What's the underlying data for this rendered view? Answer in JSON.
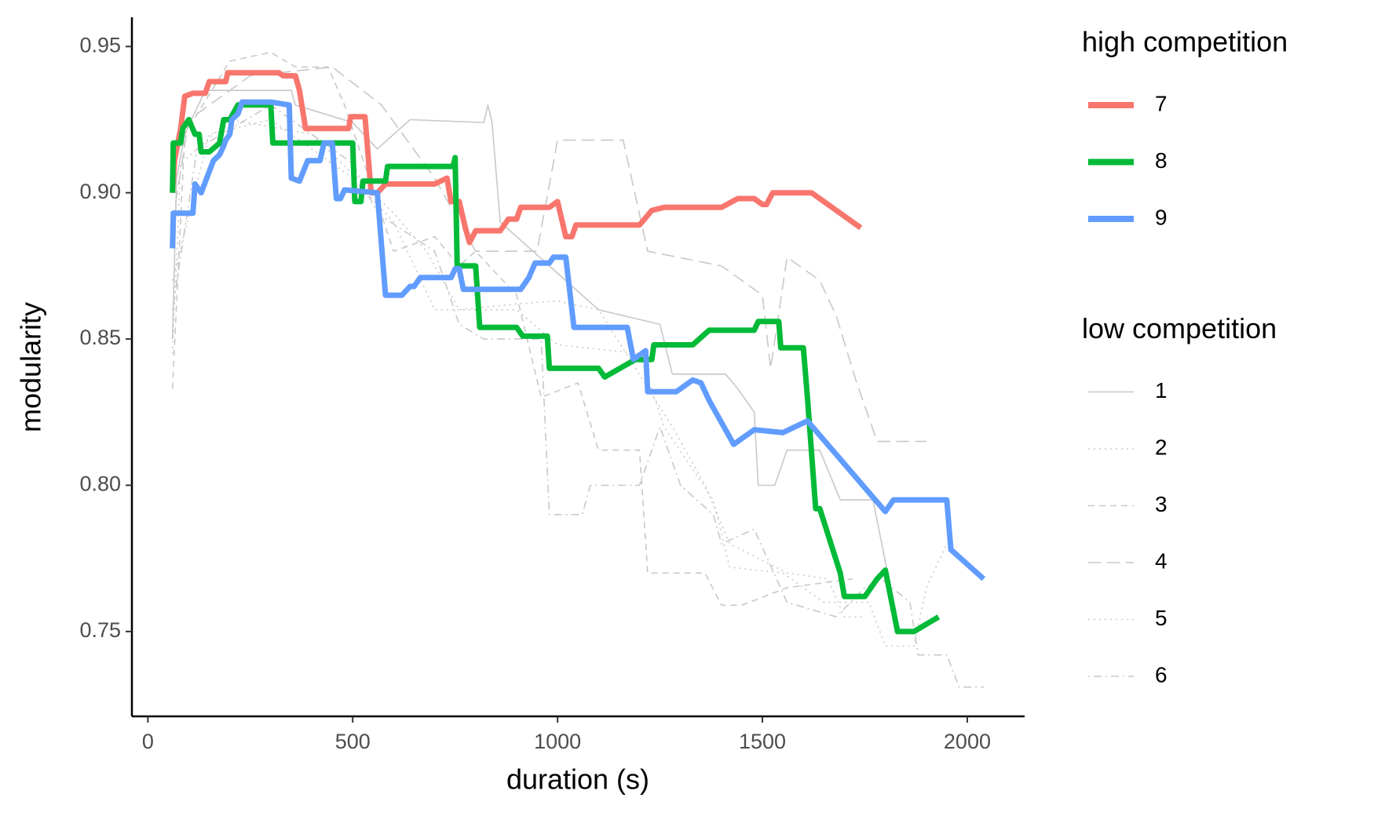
{
  "chart_data": {
    "type": "line",
    "x_label": "duration (s)",
    "y_label": "modularity",
    "xlim": [
      -39,
      2140
    ],
    "ylim": [
      0.721,
      0.96
    ],
    "xticks": [
      0,
      500,
      1000,
      1500,
      2000
    ],
    "yticks": [
      0.75,
      {
        "value": 0.8,
        "label": "0.80"
      },
      0.85,
      {
        "value": 0.9,
        "label": "0.90"
      },
      0.95
    ],
    "grid": false,
    "legend": "right",
    "series_groups": [
      {
        "name": "high competition",
        "series": [
          {
            "name": "7",
            "color": "#F8766D",
            "dash": "solid",
            "x": [
              60,
              65,
              80,
              90,
              110,
              140,
              150,
              190,
              195,
              320,
              330,
              360,
              370,
              385,
              490,
              495,
              530,
              545,
              560,
              580,
              700,
              730,
              740,
              760,
              775,
              785,
              800,
              860,
              880,
              900,
              910,
              980,
              1000,
              1020,
              1035,
              1045,
              1200,
              1230,
              1260,
              1400,
              1440,
              1480,
              1500,
              1510,
              1525,
              1620,
              1740
            ],
            "values": [
              0.9,
              0.911,
              0.922,
              0.933,
              0.934,
              0.934,
              0.938,
              0.938,
              0.941,
              0.941,
              0.94,
              0.94,
              0.935,
              0.922,
              0.922,
              0.926,
              0.926,
              0.9,
              0.9,
              0.903,
              0.903,
              0.905,
              0.897,
              0.897,
              0.888,
              0.883,
              0.887,
              0.887,
              0.891,
              0.891,
              0.895,
              0.895,
              0.897,
              0.885,
              0.885,
              0.889,
              0.889,
              0.894,
              0.895,
              0.895,
              0.898,
              0.898,
              0.896,
              0.896,
              0.9,
              0.9,
              0.888
            ]
          },
          {
            "name": "8",
            "color": "#00BA38",
            "dash": "solid",
            "x": [
              60,
              62,
              80,
              85,
              100,
              115,
              125,
              130,
              150,
              175,
              185,
              200,
              220,
              300,
              305,
              500,
              505,
              520,
              525,
              580,
              585,
              745,
              750,
              755,
              800,
              810,
              900,
              915,
              975,
              980,
              1100,
              1115,
              1190,
              1230,
              1235,
              1330,
              1370,
              1480,
              1490,
              1540,
              1545,
              1600,
              1610,
              1630,
              1640,
              1690,
              1700,
              1750,
              1780,
              1800,
              1830,
              1870,
              1930
            ],
            "values": [
              0.9,
              0.917,
              0.917,
              0.922,
              0.925,
              0.92,
              0.92,
              0.914,
              0.914,
              0.917,
              0.925,
              0.925,
              0.93,
              0.93,
              0.917,
              0.917,
              0.897,
              0.897,
              0.904,
              0.904,
              0.909,
              0.909,
              0.912,
              0.875,
              0.875,
              0.854,
              0.854,
              0.851,
              0.851,
              0.84,
              0.84,
              0.837,
              0.843,
              0.843,
              0.848,
              0.848,
              0.853,
              0.853,
              0.856,
              0.856,
              0.847,
              0.847,
              0.83,
              0.792,
              0.792,
              0.77,
              0.762,
              0.762,
              0.768,
              0.771,
              0.75,
              0.75,
              0.755
            ]
          },
          {
            "name": "9",
            "color": "#619CFF",
            "dash": "solid",
            "x": [
              60,
              62,
              110,
              115,
              130,
              160,
              175,
              185,
              190,
              200,
              205,
              220,
              230,
              300,
              345,
              350,
              370,
              390,
              420,
              430,
              450,
              460,
              470,
              480,
              560,
              580,
              620,
              640,
              650,
              665,
              740,
              750,
              760,
              770,
              910,
              930,
              945,
              980,
              990,
              1020,
              1040,
              1170,
              1185,
              1215,
              1220,
              1290,
              1330,
              1350,
              1370,
              1430,
              1480,
              1550,
              1610,
              1800,
              1820,
              1950,
              1960,
              2040
            ],
            "values": [
              0.881,
              0.893,
              0.893,
              0.903,
              0.9,
              0.911,
              0.913,
              0.916,
              0.918,
              0.92,
              0.925,
              0.927,
              0.931,
              0.931,
              0.93,
              0.905,
              0.904,
              0.911,
              0.911,
              0.917,
              0.917,
              0.898,
              0.898,
              0.901,
              0.9,
              0.865,
              0.865,
              0.868,
              0.868,
              0.871,
              0.871,
              0.874,
              0.874,
              0.867,
              0.867,
              0.871,
              0.876,
              0.876,
              0.878,
              0.878,
              0.854,
              0.854,
              0.843,
              0.846,
              0.832,
              0.832,
              0.836,
              0.835,
              0.829,
              0.814,
              0.819,
              0.818,
              0.822,
              0.791,
              0.795,
              0.795,
              0.778,
              0.768
            ]
          }
        ]
      },
      {
        "name": "low competition",
        "series": [
          {
            "name": "1",
            "color": "#c8c8c8",
            "dash": "solid",
            "x": [
              60,
              70,
              90,
              140,
              350,
              360,
              500,
              560,
              640,
              820,
              830,
              840,
              860,
              1100,
              1250,
              1280,
              1410,
              1440,
              1480,
              1490,
              1530,
              1560,
              1640,
              1690,
              1770,
              1820
            ],
            "values": [
              0.85,
              0.905,
              0.92,
              0.935,
              0.935,
              0.93,
              0.924,
              0.915,
              0.925,
              0.924,
              0.93,
              0.924,
              0.89,
              0.86,
              0.855,
              0.838,
              0.838,
              0.833,
              0.825,
              0.8,
              0.8,
              0.812,
              0.812,
              0.795,
              0.795,
              0.76
            ]
          },
          {
            "name": "2",
            "color": "#c8c8c8",
            "dash": "dotted",
            "x": [
              60,
              80,
              200,
              400,
              600,
              680,
              760,
              900,
              1000,
              1100,
              1280,
              1360,
              1420,
              1560,
              1660,
              1700,
              1750
            ],
            "values": [
              0.845,
              0.91,
              0.925,
              0.92,
              0.893,
              0.88,
              0.86,
              0.862,
              0.863,
              0.86,
              0.82,
              0.8,
              0.78,
              0.77,
              0.768,
              0.755,
              0.755
            ]
          },
          {
            "name": "3",
            "color": "#c8c8c8",
            "dash": "dashed",
            "x": [
              60,
              90,
              200,
              300,
              360,
              440,
              480,
              600,
              700,
              760,
              800,
              900,
              960,
              1050,
              1100,
              1200,
              1220,
              1360,
              1400,
              1450,
              1560,
              1720
            ],
            "values": [
              0.833,
              0.92,
              0.945,
              0.948,
              0.943,
              0.943,
              0.93,
              0.88,
              0.885,
              0.875,
              0.88,
              0.865,
              0.83,
              0.835,
              0.812,
              0.812,
              0.77,
              0.77,
              0.759,
              0.759,
              0.765,
              0.768
            ]
          },
          {
            "name": "4",
            "color": "#c8c8c8",
            "dash": "longdash",
            "x": [
              60,
              100,
              250,
              450,
              570,
              700,
              760,
              800,
              950,
              1000,
              1160,
              1220,
              1400,
              1500,
              1520,
              1560,
              1640,
              1680,
              1730,
              1780,
              1900
            ],
            "values": [
              0.89,
              0.925,
              0.94,
              0.943,
              0.93,
              0.905,
              0.89,
              0.88,
              0.88,
              0.918,
              0.918,
              0.88,
              0.875,
              0.865,
              0.84,
              0.878,
              0.87,
              0.858,
              0.835,
              0.815,
              0.815
            ]
          },
          {
            "name": "5",
            "color": "#c8c8c8",
            "dash": "dotted",
            "x": [
              60,
              150,
              300,
              500,
              600,
              700,
              900,
              1000,
              1200,
              1260,
              1380,
              1420,
              1550,
              1650,
              1760,
              1800,
              1870,
              1900,
              1950
            ],
            "values": [
              0.87,
              0.92,
              0.925,
              0.905,
              0.89,
              0.86,
              0.86,
              0.848,
              0.845,
              0.82,
              0.795,
              0.772,
              0.77,
              0.76,
              0.76,
              0.745,
              0.745,
              0.765,
              0.78
            ]
          },
          {
            "name": "6",
            "color": "#c8c8c8",
            "dash": "dotdash",
            "x": [
              60,
              120,
              300,
              500,
              560,
              700,
              760,
              820,
              960,
              980,
              1060,
              1080,
              1200,
              1250,
              1300,
              1380,
              1400,
              1480,
              1560,
              1680,
              1750,
              1790,
              1860,
              1880,
              1950,
              1980,
              2040
            ],
            "values": [
              0.86,
              0.915,
              0.93,
              0.91,
              0.893,
              0.88,
              0.855,
              0.85,
              0.85,
              0.79,
              0.79,
              0.8,
              0.8,
              0.82,
              0.8,
              0.79,
              0.78,
              0.785,
              0.76,
              0.755,
              0.765,
              0.768,
              0.76,
              0.742,
              0.742,
              0.731,
              0.731
            ]
          }
        ]
      }
    ]
  }
}
